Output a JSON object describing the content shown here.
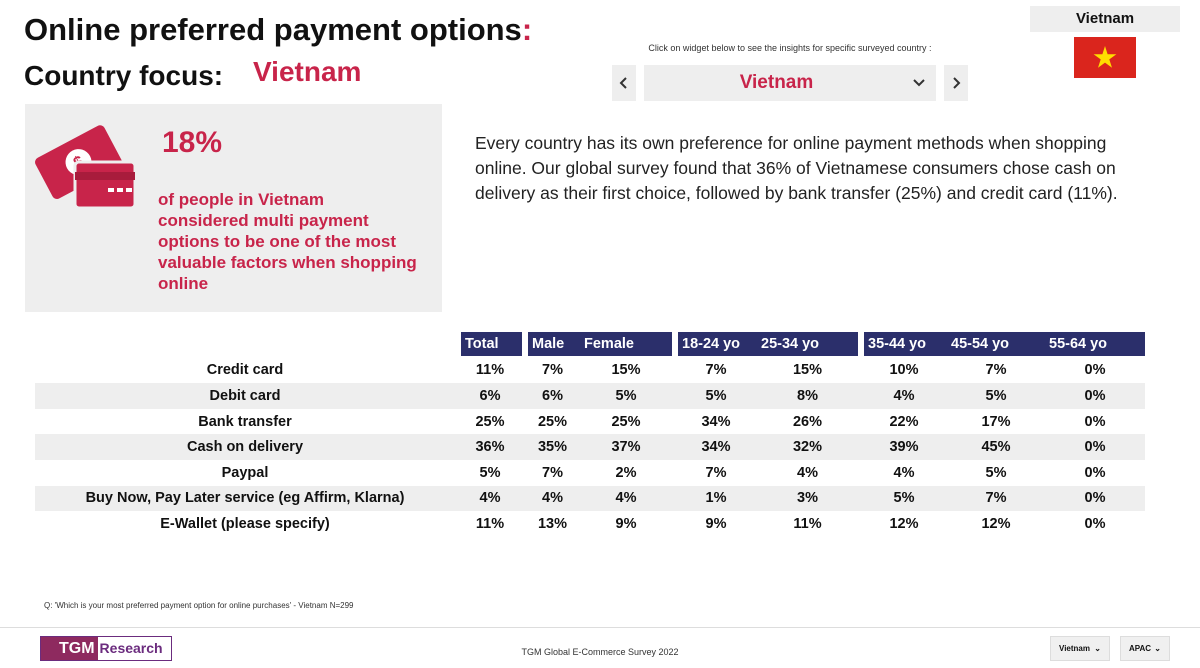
{
  "header": {
    "title": "Online preferred payment options",
    "title_colon": ":",
    "focus_label": "Country focus:",
    "focus_country": "Vietnam"
  },
  "selector": {
    "flag_label": "Vietnam",
    "hint": "Click on widget below to see the insights for specific surveyed country :",
    "selected": "Vietnam"
  },
  "stat": {
    "value": "18%",
    "description": "of people in Vietnam considered multi payment options to be one of the most valuable factors when shopping online"
  },
  "paragraph": "Every country has its own preference for online payment methods when shopping online. Our global survey found that 36% of Vietnamese consumers chose cash on delivery as their first choice, followed by bank transfer (25%) and credit card (11%).",
  "table": {
    "headers": [
      "Total",
      "Male",
      "Female",
      "18-24 yo",
      "25-34 yo",
      "35-44 yo",
      "45-54 yo",
      "55-64 yo"
    ],
    "rows": [
      [
        "Credit card",
        "11%",
        "7%",
        "15%",
        "7%",
        "15%",
        "10%",
        "7%",
        "0%"
      ],
      [
        "Debit card",
        "6%",
        "6%",
        "5%",
        "5%",
        "8%",
        "4%",
        "5%",
        "0%"
      ],
      [
        "Bank transfer",
        "25%",
        "25%",
        "25%",
        "34%",
        "26%",
        "22%",
        "17%",
        "0%"
      ],
      [
        "Cash on delivery",
        "36%",
        "35%",
        "37%",
        "34%",
        "32%",
        "39%",
        "45%",
        "0%"
      ],
      [
        "Paypal",
        "5%",
        "7%",
        "2%",
        "7%",
        "4%",
        "4%",
        "5%",
        "0%"
      ],
      [
        "Buy Now, Pay Later service (eg Affirm, Klarna)",
        "4%",
        "4%",
        "4%",
        "1%",
        "3%",
        "5%",
        "7%",
        "0%"
      ],
      [
        "E-Wallet (please specify)",
        "11%",
        "13%",
        "9%",
        "9%",
        "11%",
        "12%",
        "12%",
        "0%"
      ]
    ]
  },
  "footnote": "Q: 'Which is your most preferred payment option for online purchases' - Vietnam N=299",
  "footer": {
    "logo_main": "TGM",
    "logo_sub": "Research",
    "survey": "TGM Global E-Commerce Survey 2022",
    "country_filter": "Vietnam",
    "region_filter": "APAC"
  }
}
